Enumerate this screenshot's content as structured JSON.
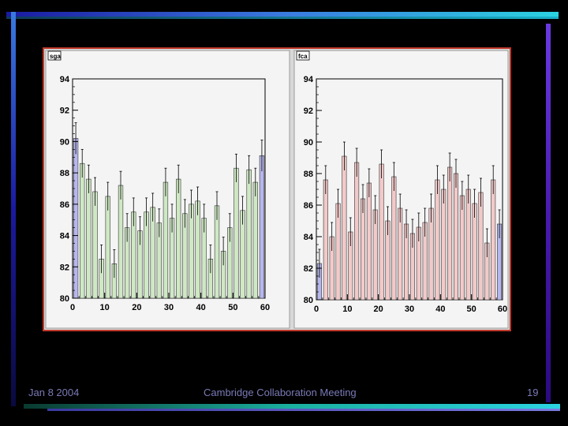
{
  "footer": {
    "date": "Jan 8 2004",
    "title": "Cambridge Collaboration Meeting",
    "page": "19"
  },
  "colors": {
    "left_fill": "#cfe8c4",
    "right_fill": "#f2c9c9",
    "edge_fill": "#b7b7ee",
    "frame_border": "#c0392b"
  },
  "chart_data": [
    {
      "type": "bar",
      "title": "sga",
      "xlabel": "",
      "ylabel": "",
      "xlim": [
        0,
        60
      ],
      "ylim": [
        80,
        94
      ],
      "x_ticks": [
        "0",
        "10",
        "20",
        "30",
        "40",
        "50",
        "60"
      ],
      "y_ticks": [
        "80",
        "82",
        "84",
        "86",
        "88",
        "90",
        "92",
        "94"
      ],
      "x": [
        1,
        3,
        5,
        7,
        9,
        11,
        13,
        15,
        17,
        19,
        21,
        23,
        25,
        27,
        29,
        31,
        33,
        35,
        37,
        39,
        41,
        43,
        45,
        47,
        49,
        51,
        53,
        55,
        57,
        59
      ],
      "values": [
        90.2,
        88.6,
        87.6,
        86.8,
        82.5,
        86.5,
        82.2,
        87.2,
        84.5,
        85.5,
        84.3,
        85.5,
        85.8,
        84.8,
        87.4,
        85.1,
        87.6,
        85.4,
        86.0,
        86.2,
        85.1,
        82.5,
        85.9,
        83.0,
        84.5,
        88.3,
        85.6,
        88.2,
        87.4,
        89.1
      ],
      "errors": [
        1.0,
        0.9,
        0.9,
        0.9,
        0.9,
        0.9,
        0.9,
        0.9,
        0.9,
        0.9,
        0.9,
        0.9,
        0.9,
        0.9,
        0.9,
        0.9,
        0.9,
        0.9,
        0.9,
        0.9,
        0.9,
        0.9,
        0.9,
        0.9,
        0.9,
        0.9,
        0.9,
        0.9,
        0.9,
        1.0
      ]
    },
    {
      "type": "bar",
      "title": "fca",
      "xlabel": "",
      "ylabel": "",
      "xlim": [
        0,
        60
      ],
      "ylim": [
        80,
        94
      ],
      "x_ticks": [
        "0",
        "10",
        "20",
        "30",
        "40",
        "50",
        "60"
      ],
      "y_ticks": [
        "80",
        "82",
        "84",
        "86",
        "88",
        "90",
        "92",
        "94"
      ],
      "x": [
        1,
        3,
        5,
        7,
        9,
        11,
        13,
        15,
        17,
        19,
        21,
        23,
        25,
        27,
        29,
        31,
        33,
        35,
        37,
        39,
        41,
        43,
        45,
        47,
        49,
        51,
        53,
        55,
        57,
        59
      ],
      "values": [
        82.3,
        87.6,
        84.0,
        86.1,
        89.1,
        84.3,
        88.7,
        86.4,
        87.4,
        85.7,
        88.6,
        85.0,
        87.8,
        85.8,
        84.8,
        84.2,
        84.6,
        84.9,
        85.8,
        87.6,
        87.0,
        88.4,
        88.0,
        86.6,
        87.0,
        86.1,
        86.8,
        83.6,
        87.6,
        84.8
      ]
    }
  ]
}
